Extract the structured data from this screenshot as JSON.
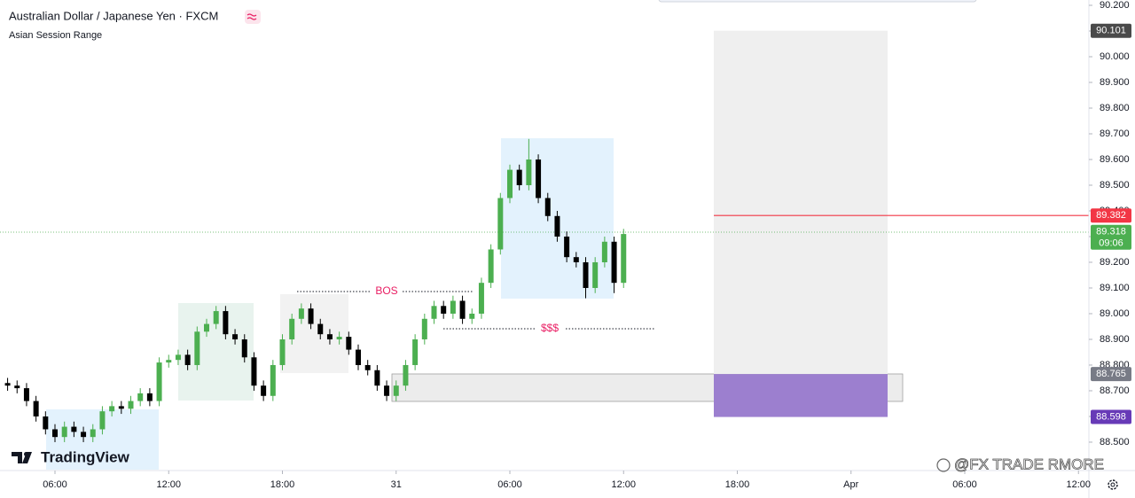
{
  "chart_data": {
    "type": "candlestick",
    "title": "Australian Dollar / Japanese Yen · FXCM",
    "indicator": "Asian Session Range",
    "logo": "TradingView",
    "watermark": "@FX TRADE RMORE",
    "annotations": [
      "BOS",
      "$$$"
    ],
    "countdown": "09:06",
    "up_color": "#4caf50",
    "down_color": "#000000",
    "grid": false,
    "x": [
      3.5,
      4,
      4.5,
      5,
      5.5,
      6,
      6.5,
      7,
      7.5,
      8,
      8.5,
      9,
      9.5,
      10,
      10.5,
      11,
      11.5,
      12,
      12.5,
      13,
      13.5,
      14,
      14.5,
      15,
      15.5,
      16,
      16.5,
      17,
      17.5,
      18,
      18.5,
      19,
      19.5,
      20,
      20.5,
      21,
      21.5,
      22,
      22.5,
      23,
      23.5,
      24,
      24.5,
      25,
      25.5,
      26,
      26.5,
      27,
      27.5,
      28,
      28.5,
      29,
      29.5,
      30,
      30.5,
      31,
      31.5,
      32,
      32.5,
      33,
      33.5,
      34,
      34.5,
      35,
      35.5,
      36
    ],
    "open": [
      88.73,
      88.72,
      88.71,
      88.66,
      88.6,
      88.55,
      88.52,
      88.56,
      88.54,
      88.52,
      88.55,
      88.62,
      88.64,
      88.63,
      88.66,
      88.69,
      88.66,
      88.81,
      88.82,
      88.84,
      88.8,
      88.93,
      88.96,
      89.01,
      88.92,
      88.9,
      88.83,
      88.72,
      88.68,
      88.8,
      88.9,
      88.98,
      89.02,
      88.96,
      88.92,
      88.9,
      88.91,
      88.86,
      88.8,
      88.78,
      88.72,
      88.68,
      88.72,
      88.8,
      88.9,
      88.98,
      89.03,
      89.0,
      89.05,
      88.98,
      89.0,
      89.12,
      89.25,
      89.45,
      89.56,
      89.5,
      89.6,
      89.45,
      89.38,
      89.3,
      89.22,
      89.2,
      89.1,
      89.2,
      89.28,
      89.12
    ],
    "high": [
      88.75,
      88.74,
      88.73,
      88.68,
      88.62,
      88.57,
      88.58,
      88.58,
      88.56,
      88.57,
      88.64,
      88.66,
      88.66,
      88.68,
      88.71,
      88.71,
      88.83,
      88.84,
      88.86,
      88.86,
      88.95,
      88.98,
      89.03,
      89.03,
      88.94,
      88.92,
      88.85,
      88.74,
      88.82,
      88.92,
      89.0,
      89.04,
      89.04,
      88.98,
      88.94,
      88.93,
      88.93,
      88.88,
      88.82,
      88.8,
      88.74,
      88.74,
      88.82,
      88.92,
      89.0,
      89.05,
      89.05,
      89.07,
      89.07,
      89.02,
      89.14,
      89.27,
      89.47,
      89.58,
      89.58,
      89.68,
      89.62,
      89.47,
      89.4,
      89.32,
      89.24,
      89.22,
      89.22,
      89.3,
      89.3,
      89.33
    ],
    "low": [
      88.7,
      88.69,
      88.64,
      88.58,
      88.53,
      88.5,
      88.5,
      88.52,
      88.5,
      88.5,
      88.53,
      88.6,
      88.61,
      88.61,
      88.64,
      88.64,
      88.64,
      88.79,
      88.8,
      88.78,
      88.78,
      88.91,
      88.94,
      88.9,
      88.88,
      88.81,
      88.7,
      88.66,
      88.66,
      88.78,
      88.88,
      88.96,
      88.94,
      88.9,
      88.88,
      88.88,
      88.84,
      88.78,
      88.76,
      88.7,
      88.66,
      88.66,
      88.7,
      88.78,
      88.88,
      88.96,
      88.98,
      88.98,
      88.96,
      88.96,
      88.98,
      89.1,
      89.23,
      89.43,
      89.48,
      89.48,
      89.43,
      89.36,
      89.28,
      89.2,
      89.18,
      89.06,
      89.08,
      89.18,
      89.08,
      89.1
    ],
    "close": [
      88.72,
      88.71,
      88.66,
      88.6,
      88.55,
      88.52,
      88.56,
      88.54,
      88.52,
      88.55,
      88.62,
      88.64,
      88.63,
      88.66,
      88.69,
      88.66,
      88.81,
      88.82,
      88.84,
      88.8,
      88.93,
      88.96,
      89.01,
      88.92,
      88.9,
      88.83,
      88.72,
      88.68,
      88.8,
      88.9,
      88.98,
      89.02,
      88.96,
      88.92,
      88.9,
      88.91,
      88.86,
      88.8,
      88.78,
      88.72,
      88.68,
      88.72,
      88.8,
      88.9,
      88.98,
      89.03,
      89.0,
      89.05,
      88.98,
      89.0,
      89.12,
      89.25,
      89.45,
      89.56,
      89.5,
      89.6,
      89.45,
      89.38,
      89.3,
      89.22,
      89.2,
      89.1,
      89.2,
      89.28,
      89.12,
      89.31
    ],
    "xlim": [
      3.099,
      60.55
    ],
    "xticks": [
      {
        "value": 6,
        "label": "06:00"
      },
      {
        "value": 12,
        "label": "12:00"
      },
      {
        "value": 18,
        "label": "18:00"
      },
      {
        "value": 24,
        "label": "31"
      },
      {
        "value": 30,
        "label": "06:00"
      },
      {
        "value": 36,
        "label": "12:00"
      },
      {
        "value": 42,
        "label": "18:00"
      },
      {
        "value": 48,
        "label": "Apr"
      },
      {
        "value": 54,
        "label": "06:00"
      },
      {
        "value": 60,
        "label": "12:00"
      }
    ],
    "ylim": [
      88.393,
      90.2207
    ],
    "yticks": [
      {
        "value": 88.5,
        "label": "88.500"
      },
      {
        "value": 88.6,
        "label": "88.600"
      },
      {
        "value": 88.7,
        "label": "88.700"
      },
      {
        "value": 88.8,
        "label": "88.800"
      },
      {
        "value": 88.9,
        "label": "88.900"
      },
      {
        "value": 89,
        "label": "89.000"
      },
      {
        "value": 89.1,
        "label": "89.100"
      },
      {
        "value": 89.2,
        "label": "89.200"
      },
      {
        "value": 89.3,
        "label": "89.300"
      },
      {
        "value": 89.4,
        "label": "89.400"
      },
      {
        "value": 89.5,
        "label": "89.500"
      },
      {
        "value": 89.6,
        "label": "89.600"
      },
      {
        "value": 89.7,
        "label": "89.700"
      },
      {
        "value": 89.8,
        "label": "89.800"
      },
      {
        "value": 89.9,
        "label": "89.900"
      },
      {
        "value": 90,
        "label": "90.000"
      },
      {
        "value": 90.1,
        "label": "90.100"
      },
      {
        "value": 90.2,
        "label": "90.200"
      }
    ],
    "price_labels": [
      {
        "value": 90.101,
        "color": "#4a4a4a"
      },
      {
        "value": 89.382,
        "color": "#f23645"
      },
      {
        "value": 89.318,
        "color": "#4caf50"
      },
      {
        "value": 88.765,
        "color": "#787b86"
      },
      {
        "value": 88.598,
        "color": "#673ab7"
      }
    ]
  }
}
